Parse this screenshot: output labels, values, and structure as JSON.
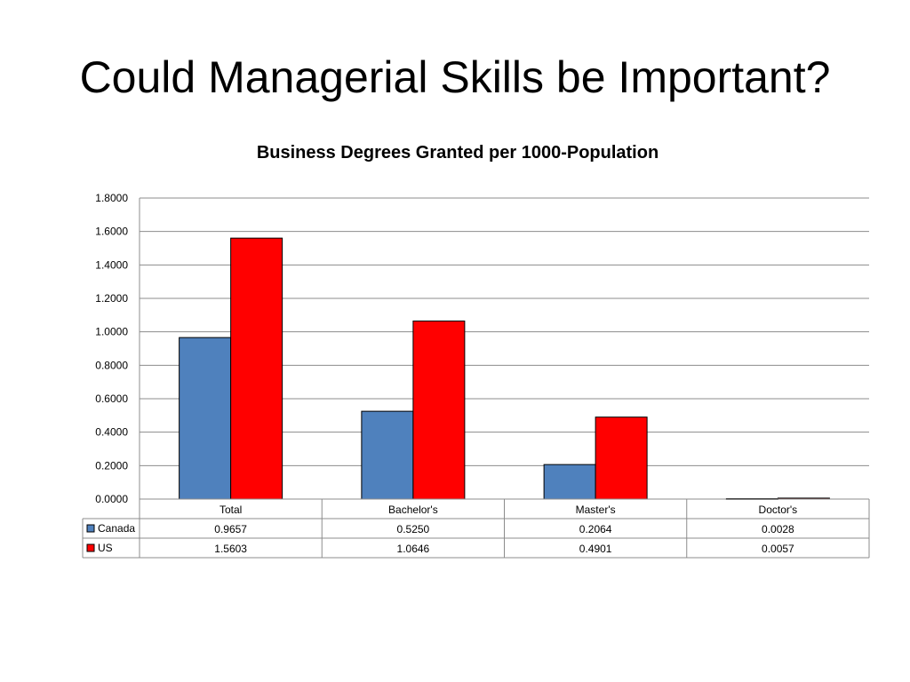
{
  "slide": {
    "title": "Could Managerial Skills be Important?"
  },
  "chart_data": {
    "type": "bar",
    "title": "Business Degrees Granted per 1000-Population",
    "categories": [
      "Total",
      "Bachelor's",
      "Master's",
      "Doctor's"
    ],
    "series": [
      {
        "name": "Canada",
        "values": [
          0.9657,
          0.525,
          0.2064,
          0.0028
        ],
        "color": "#4F81BD"
      },
      {
        "name": "US",
        "values": [
          1.5603,
          1.0646,
          0.4901,
          0.0057
        ],
        "color": "#FF0000"
      }
    ],
    "yticks": [
      "0.0000",
      "0.2000",
      "0.4000",
      "0.6000",
      "0.8000",
      "1.0000",
      "1.2000",
      "1.4000",
      "1.6000",
      "1.8000"
    ],
    "ylim": [
      0,
      1.8
    ],
    "grid": true,
    "data_table": {
      "rows": [
        {
          "series": "Canada",
          "cells": [
            "0.9657",
            "0.5250",
            "0.2064",
            "0.0028"
          ]
        },
        {
          "series": "US",
          "cells": [
            "1.5603",
            "1.0646",
            "0.4901",
            "0.0057"
          ]
        }
      ]
    }
  }
}
